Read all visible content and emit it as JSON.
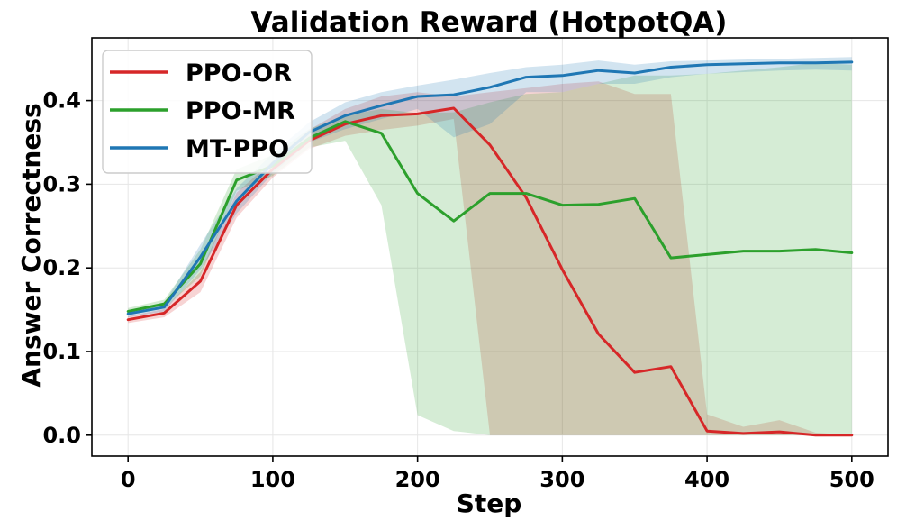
{
  "chart_data": {
    "type": "line",
    "title": "Validation Reward (HotpotQA)",
    "xlabel": "Step",
    "ylabel": "Answer Correctness",
    "xlim": [
      -25,
      525
    ],
    "ylim": [
      -0.025,
      0.475
    ],
    "xticks": [
      0,
      100,
      200,
      300,
      400,
      500
    ],
    "xtick_labels": [
      "0",
      "100",
      "200",
      "300",
      "400",
      "500"
    ],
    "yticks": [
      0.0,
      0.1,
      0.2,
      0.3,
      0.4
    ],
    "ytick_labels": [
      "0.0",
      "0.1",
      "0.2",
      "0.3",
      "0.4"
    ],
    "grid": true,
    "legend_position": "top-left",
    "x": [
      0,
      25,
      50,
      75,
      100,
      125,
      150,
      175,
      200,
      225,
      250,
      275,
      300,
      325,
      350,
      375,
      400,
      425,
      450,
      475,
      500
    ],
    "series": [
      {
        "name": "PPO-OR",
        "color": "#d62728",
        "values": [
          0.138,
          0.146,
          0.184,
          0.275,
          0.318,
          0.352,
          0.372,
          0.382,
          0.384,
          0.391,
          0.347,
          0.284,
          0.198,
          0.121,
          0.075,
          0.082,
          0.005,
          0.002,
          0.004,
          0.0,
          0.0
        ],
        "band_upper": [
          0.142,
          0.151,
          0.195,
          0.29,
          0.328,
          0.365,
          0.39,
          0.405,
          0.41,
          0.405,
          0.41,
          0.415,
          0.42,
          0.423,
          0.408,
          0.408,
          0.025,
          0.01,
          0.018,
          0.003,
          0.0
        ],
        "band_lower": [
          0.134,
          0.141,
          0.171,
          0.26,
          0.308,
          0.342,
          0.358,
          0.365,
          0.37,
          0.378,
          0.0,
          0.0,
          0.0,
          0.0,
          0.0,
          0.0,
          0.0,
          0.0,
          0.0,
          0.0,
          0.0
        ]
      },
      {
        "name": "PPO-MR",
        "color": "#2ca02c",
        "values": [
          0.148,
          0.157,
          0.205,
          0.305,
          0.322,
          0.355,
          0.375,
          0.361,
          0.289,
          0.256,
          0.289,
          0.289,
          0.275,
          0.276,
          0.283,
          0.212,
          0.216,
          0.22,
          0.22,
          0.222,
          0.218
        ],
        "band_upper": [
          0.152,
          0.162,
          0.222,
          0.318,
          0.335,
          0.366,
          0.382,
          0.39,
          0.385,
          0.386,
          0.398,
          0.408,
          0.41,
          0.42,
          0.43,
          0.43,
          0.432,
          0.436,
          0.44,
          0.445,
          0.443
        ],
        "band_lower": [
          0.144,
          0.152,
          0.19,
          0.292,
          0.31,
          0.344,
          0.352,
          0.275,
          0.024,
          0.005,
          0.0,
          0.0,
          0.0,
          0.0,
          0.0,
          0.0,
          0.0,
          0.0,
          0.0,
          0.0,
          0.0
        ]
      },
      {
        "name": "MT-PPO",
        "color": "#1f77b4",
        "values": [
          0.145,
          0.153,
          0.213,
          0.28,
          0.325,
          0.362,
          0.382,
          0.394,
          0.405,
          0.407,
          0.416,
          0.428,
          0.43,
          0.436,
          0.433,
          0.44,
          0.443,
          0.444,
          0.445,
          0.445,
          0.446
        ],
        "band_upper": [
          0.149,
          0.158,
          0.228,
          0.295,
          0.337,
          0.374,
          0.398,
          0.41,
          0.418,
          0.425,
          0.433,
          0.44,
          0.443,
          0.448,
          0.443,
          0.447,
          0.448,
          0.449,
          0.45,
          0.451,
          0.452
        ],
        "band_lower": [
          0.141,
          0.148,
          0.198,
          0.265,
          0.313,
          0.35,
          0.366,
          0.378,
          0.39,
          0.356,
          0.372,
          0.41,
          0.41,
          0.42,
          0.42,
          0.428,
          0.432,
          0.434,
          0.436,
          0.437,
          0.436
        ]
      }
    ]
  }
}
